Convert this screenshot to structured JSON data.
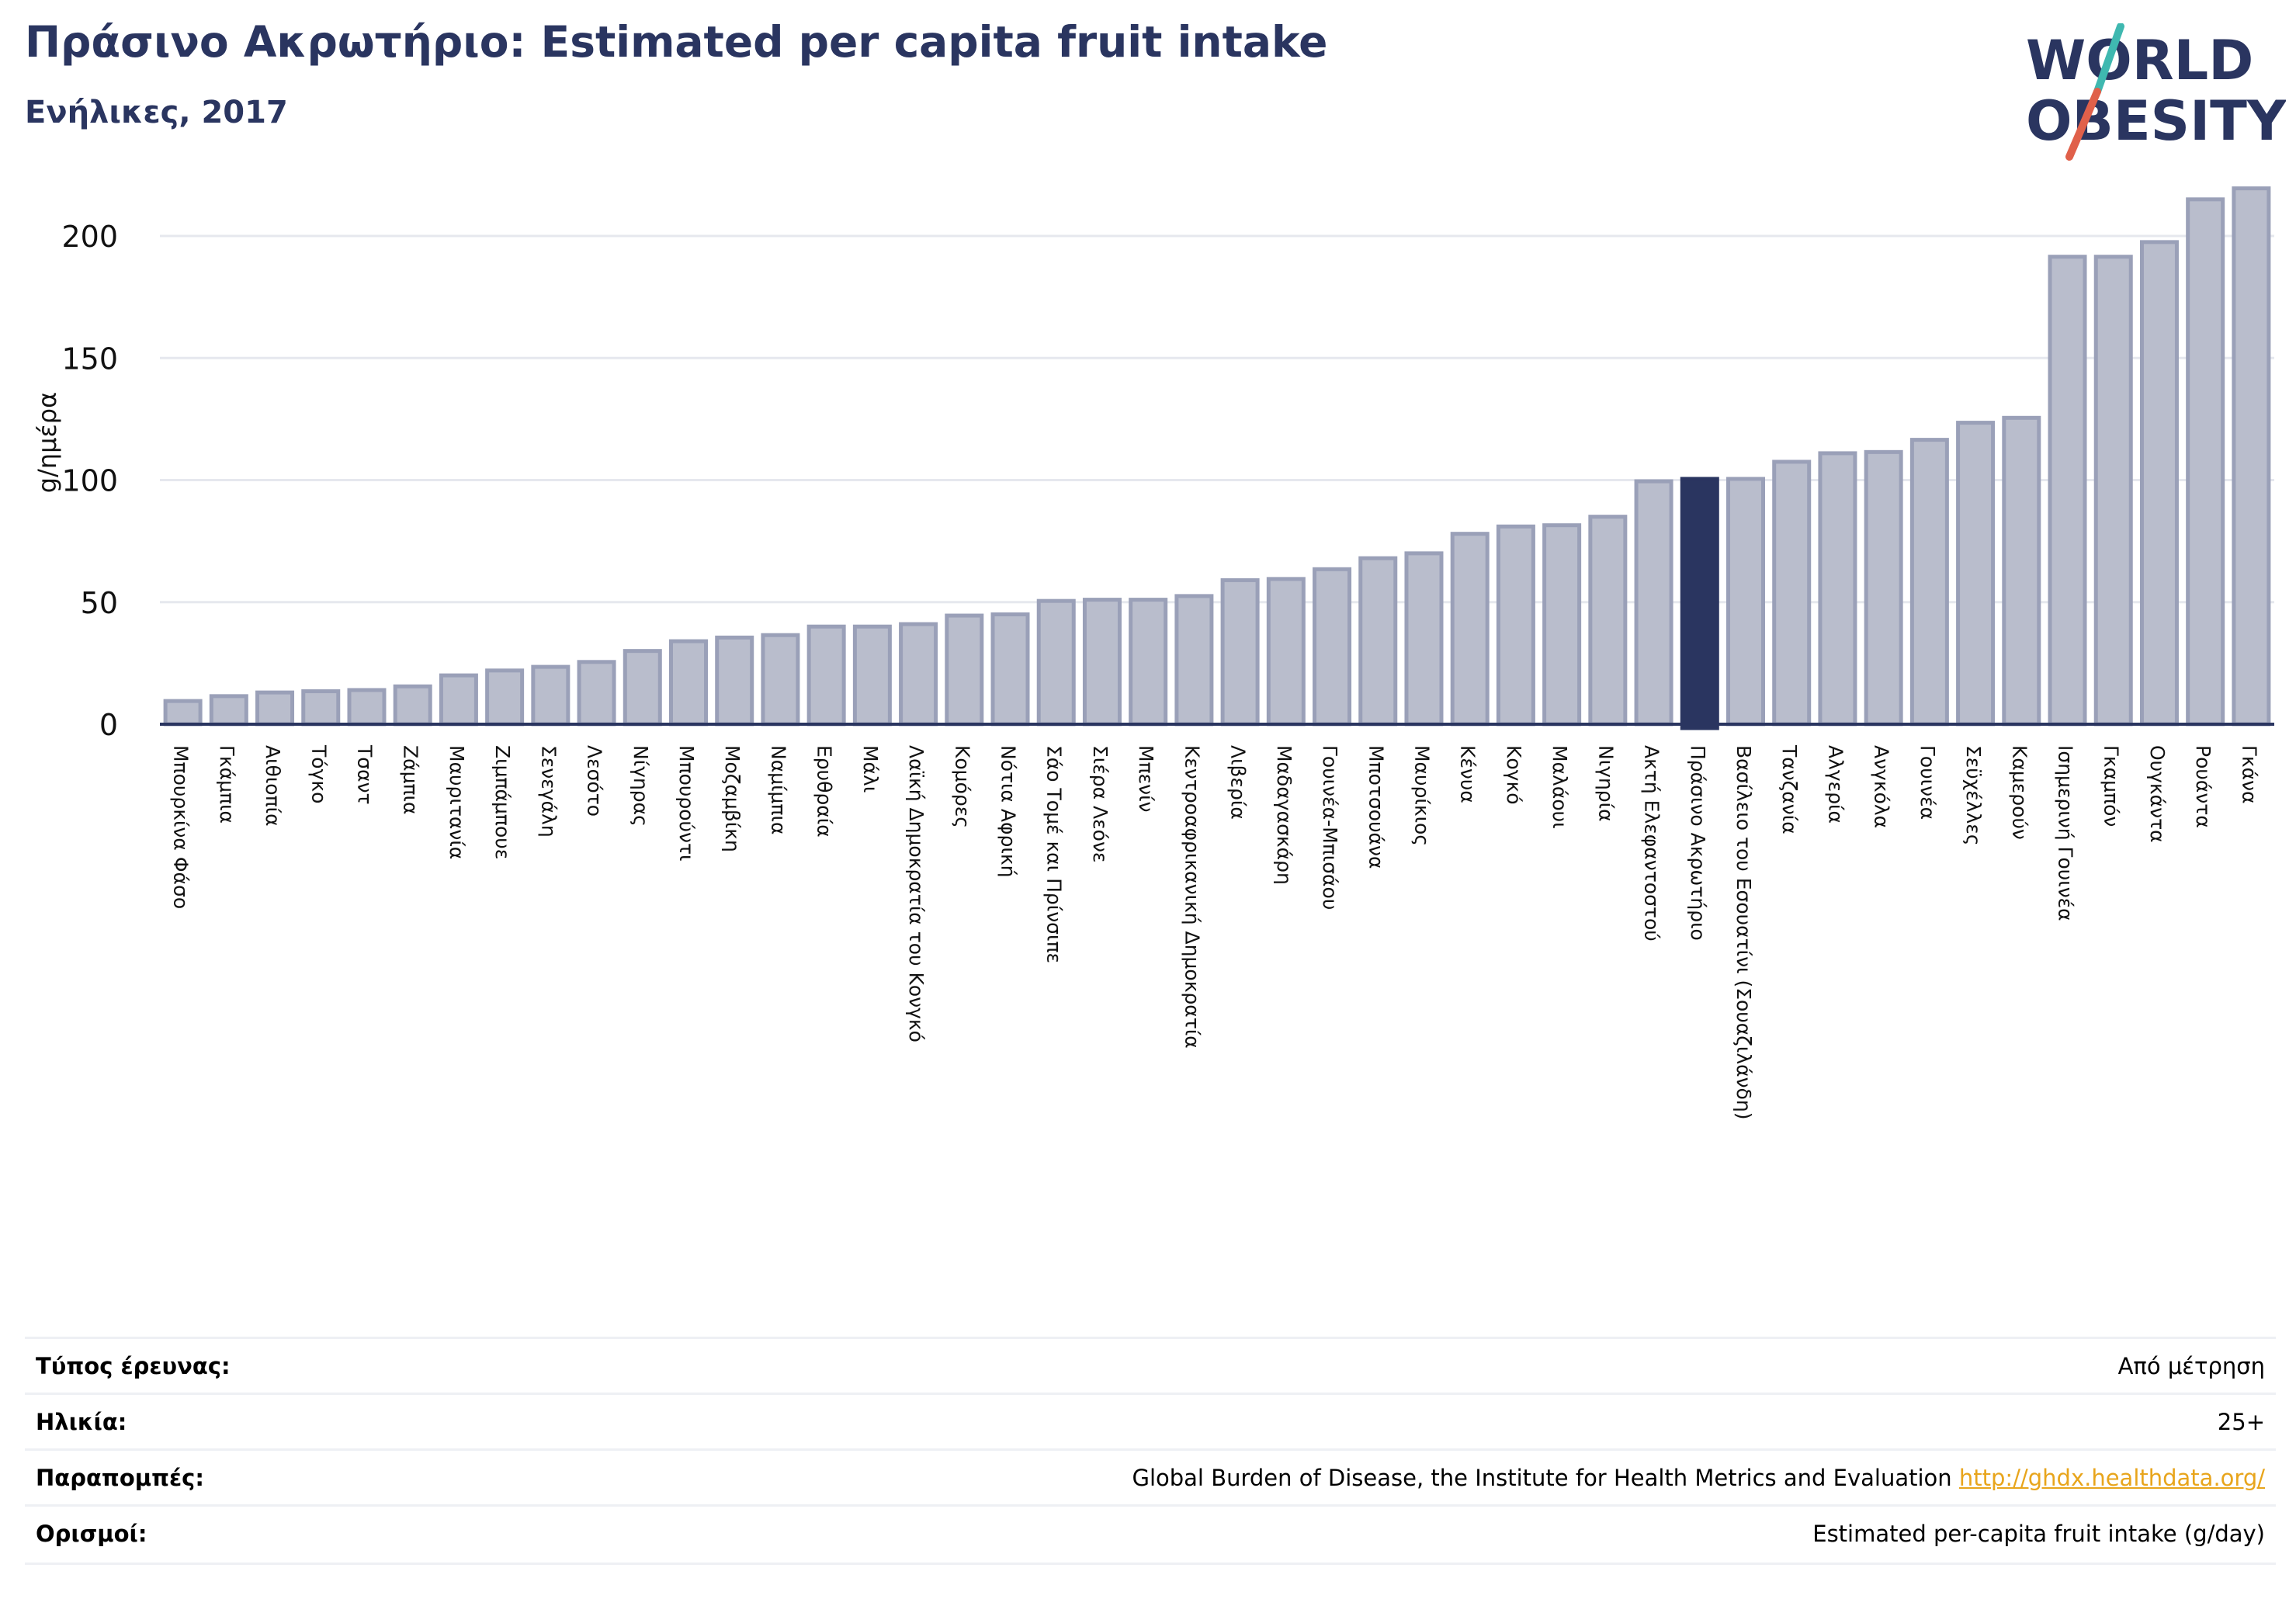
{
  "header": {
    "title": "Πράσινο Ακρωτήριο: Estimated per capita fruit intake",
    "subtitle": "Ενήλικες, 2017"
  },
  "logo": {
    "line1": "WORLD",
    "line2": "OBESITY"
  },
  "colors": {
    "bar_fill": "#b9bdcc",
    "bar_stroke": "#9aa0b8",
    "highlight": "#2a3560",
    "grid": "#e6e8ee",
    "axis": "#2a3560",
    "link": "#e8a51c",
    "logo_slash_teal": "#3fb8b0",
    "logo_slash_red": "#e0604a"
  },
  "chart_data": {
    "type": "bar",
    "title": "",
    "xlabel": "",
    "ylabel": "g/ημέρα",
    "ylim": [
      0,
      225
    ],
    "yticks": [
      0,
      50,
      100,
      150,
      200
    ],
    "highlight_category": "Πράσινο Ακρωτήριο",
    "categories": [
      "Μπουρκίνα Φάσο",
      "Γκάμπια",
      "Αιθιοπία",
      "Τόγκο",
      "Τσαντ",
      "Ζάμπια",
      "Μαυριτανία",
      "Ζιμπάμπουε",
      "Σενεγάλη",
      "Λεσότο",
      "Νίγηρας",
      "Μπουρούντι",
      "Μοζαμβίκη",
      "Ναμίμπια",
      "Ερυθραία",
      "Μάλι",
      "Λαϊκή Δημοκρατία του Κονγκό",
      "Κομόρες",
      "Νότια Αφρική",
      "Σάο Τομέ και Πρίνσιπε",
      "Σιέρα Λεόνε",
      "Μπενίν",
      "Κεντροαφρικανική Δημοκρατία",
      "Λιβερία",
      "Μαδαγασκάρη",
      "Γουινέα-Μπισάου",
      "Μποτσουάνα",
      "Μαυρίκιος",
      "Κένυα",
      "Κογκό",
      "Μαλάουι",
      "Νιγηρία",
      "Ακτή Ελεφαντοστού",
      "Πράσινο Ακρωτήριο",
      "Βασίλειο του Εσουατίνι (Σουαζιλάνδη)",
      "Τανζανία",
      "Αλγερία",
      "Ανγκόλα",
      "Γουινέα",
      "Σεϋχέλλες",
      "Καμερούν",
      "Ισημερινή Γουινέα",
      "Γκαμπόν",
      "Ουγκάντα",
      "Ρουάντα",
      "Γκάνα"
    ],
    "values": [
      9.5,
      11.5,
      13,
      13.5,
      14,
      15.5,
      20,
      22,
      23.5,
      25.5,
      30,
      34,
      35.5,
      36.5,
      40,
      40,
      41,
      44.5,
      45,
      50.5,
      51,
      51,
      52.5,
      59,
      59.5,
      63.5,
      68,
      70,
      78,
      81,
      81.5,
      85,
      99.5,
      100.5,
      100.5,
      107.5,
      111,
      111.5,
      116.5,
      123.5,
      125.5,
      191.5,
      191.5,
      197.5,
      215,
      219.5
    ]
  },
  "info": {
    "survey_type_label": "Τύπος έρευνας:",
    "survey_type_value": "Από μέτρηση",
    "age_label": "Ηλικία:",
    "age_value": "25+",
    "references_label": "Παραπομπές:",
    "references_value": "Global Burden of Disease, the Institute for Health Metrics and Evaluation",
    "references_link": "http://ghdx.healthdata.org/",
    "definitions_label": "Ορισμοί:",
    "definitions_value": "Estimated per-capita fruit intake (g/day)"
  }
}
